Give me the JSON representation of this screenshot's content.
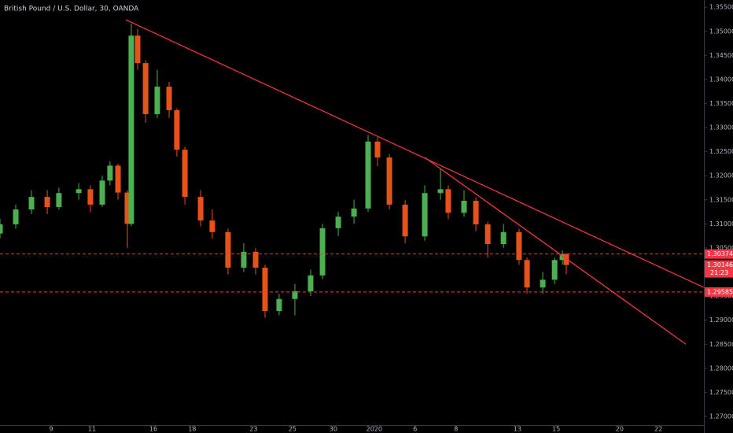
{
  "chart_data": {
    "type": "candlestick",
    "title": "British Pound / U.S. Dollar, 30, OANDA",
    "up_color": "#4caf50",
    "down_color": "#e5531a",
    "line_color": "#f23645",
    "xlim": [
      -2.5,
      31.92
    ],
    "ylim": [
      1.2682,
      1.3565
    ],
    "xticks": [
      {
        "value": 0,
        "label": "9"
      },
      {
        "value": 2,
        "label": "11"
      },
      {
        "value": 5,
        "label": "16"
      },
      {
        "value": 6.9,
        "label": "18"
      },
      {
        "value": 9.9,
        "label": "23"
      },
      {
        "value": 11.8,
        "label": "25"
      },
      {
        "value": 13.8,
        "label": "30"
      },
      {
        "value": 15.8,
        "label": "2020"
      },
      {
        "value": 17.8,
        "label": "6"
      },
      {
        "value": 19.8,
        "label": "8"
      },
      {
        "value": 22.8,
        "label": "13"
      },
      {
        "value": 24.7,
        "label": "15"
      },
      {
        "value": 27.8,
        "label": "20"
      },
      {
        "value": 29.7,
        "label": "22"
      }
    ],
    "yticks": [
      {
        "value": 1.27,
        "label": "1.27000"
      },
      {
        "value": 1.275,
        "label": "1.27500"
      },
      {
        "value": 1.28,
        "label": "1.28000"
      },
      {
        "value": 1.285,
        "label": "1.28500"
      },
      {
        "value": 1.29,
        "label": "1.29000"
      },
      {
        "value": 1.295,
        "label": "1.29500"
      },
      {
        "value": 1.3,
        "label": "1.30000"
      },
      {
        "value": 1.305,
        "label": "1.30500"
      },
      {
        "value": 1.31,
        "label": "1.31000"
      },
      {
        "value": 1.315,
        "label": "1.31500"
      },
      {
        "value": 1.32,
        "label": "1.32000"
      },
      {
        "value": 1.325,
        "label": "1.32500"
      },
      {
        "value": 1.33,
        "label": "1.33000"
      },
      {
        "value": 1.335,
        "label": "1.33500"
      },
      {
        "value": 1.34,
        "label": "1.34000"
      },
      {
        "value": 1.345,
        "label": "1.34500"
      },
      {
        "value": 1.35,
        "label": "1.35000"
      },
      {
        "value": 1.355,
        "label": "1.35500"
      }
    ],
    "candles": {
      "x": [
        -2.5,
        -1.73,
        -0.96,
        -0.19,
        0.38,
        1.35,
        1.92,
        2.5,
        2.88,
        3.27,
        3.73,
        3.92,
        4.23,
        4.62,
        5.19,
        5.77,
        6.15,
        6.54,
        7.31,
        7.88,
        8.65,
        9.42,
        10.0,
        10.46,
        11.15,
        11.92,
        12.69,
        13.27,
        14.04,
        14.81,
        15.5,
        15.96,
        16.54,
        17.31,
        18.27,
        19.04,
        19.42,
        20.19,
        20.77,
        21.35,
        22.12,
        22.88,
        23.27,
        24.04,
        24.62,
        25.0,
        25.19
      ],
      "open": [
        1.308,
        1.3099,
        1.313,
        1.3156,
        1.3135,
        1.3164,
        1.3172,
        1.314,
        1.319,
        1.3221,
        1.3165,
        1.31,
        1.3491,
        1.3434,
        1.3328,
        1.3385,
        1.3336,
        1.3254,
        1.3156,
        1.3107,
        1.3083,
        1.3009,
        1.3042,
        1.3009,
        1.2919,
        1.2944,
        1.296,
        1.2993,
        1.3091,
        1.3115,
        1.3132,
        1.3271,
        1.3238,
        1.314,
        1.3074,
        1.3164,
        1.3172,
        1.3123,
        1.3148,
        1.3099,
        1.3058,
        1.3083,
        1.3025,
        1.2968,
        1.2984,
        1.3025,
        1.3037
      ],
      "high": [
        1.311,
        1.314,
        1.317,
        1.317,
        1.3175,
        1.3185,
        1.318,
        1.32,
        1.323,
        1.3225,
        1.317,
        1.3516,
        1.3505,
        1.344,
        1.342,
        1.3395,
        1.334,
        1.326,
        1.317,
        1.313,
        1.309,
        1.306,
        1.305,
        1.3015,
        1.2955,
        1.2975,
        1.3005,
        1.31,
        1.3125,
        1.315,
        1.3285,
        1.328,
        1.3245,
        1.315,
        1.318,
        1.3215,
        1.318,
        1.317,
        1.3155,
        1.3105,
        1.31,
        1.309,
        1.303,
        1.3,
        1.303,
        1.3045,
        1.304
      ],
      "low": [
        1.307,
        1.309,
        1.312,
        1.312,
        1.313,
        1.315,
        1.3125,
        1.3135,
        1.318,
        1.315,
        1.305,
        1.3095,
        1.342,
        1.331,
        1.332,
        1.332,
        1.324,
        1.314,
        1.3095,
        1.307,
        1.2995,
        1.3,
        1.2995,
        1.2905,
        1.291,
        1.291,
        1.295,
        1.2985,
        1.3075,
        1.31,
        1.3125,
        1.322,
        1.313,
        1.306,
        1.3065,
        1.315,
        1.311,
        1.3115,
        1.3085,
        1.303,
        1.305,
        1.3015,
        1.2955,
        1.2955,
        1.2975,
        1.3015,
        1.2995
      ],
      "close": [
        1.3099,
        1.313,
        1.3156,
        1.3135,
        1.3164,
        1.3172,
        1.314,
        1.319,
        1.3221,
        1.3165,
        1.31,
        1.3491,
        1.3434,
        1.3328,
        1.3385,
        1.3336,
        1.3254,
        1.3156,
        1.3107,
        1.3083,
        1.3009,
        1.3042,
        1.3009,
        1.2919,
        1.2944,
        1.296,
        1.2993,
        1.3091,
        1.3115,
        1.3132,
        1.3271,
        1.3238,
        1.314,
        1.3074,
        1.3164,
        1.3172,
        1.3123,
        1.3148,
        1.3099,
        1.3058,
        1.3083,
        1.3025,
        1.2968,
        1.2984,
        1.3025,
        1.3037,
        1.30146
      ]
    },
    "trendlines": [
      {
        "x": [
          3.65,
          31.92
        ],
        "y": [
          1.3524,
          1.2968
        ]
      },
      {
        "x": [
          18.27,
          31.04
        ],
        "y": [
          1.3238,
          1.285
        ]
      }
    ],
    "price_lines": [
      1.30374,
      1.29585
    ],
    "last_price": 1.30146,
    "countdown": "21:23"
  }
}
